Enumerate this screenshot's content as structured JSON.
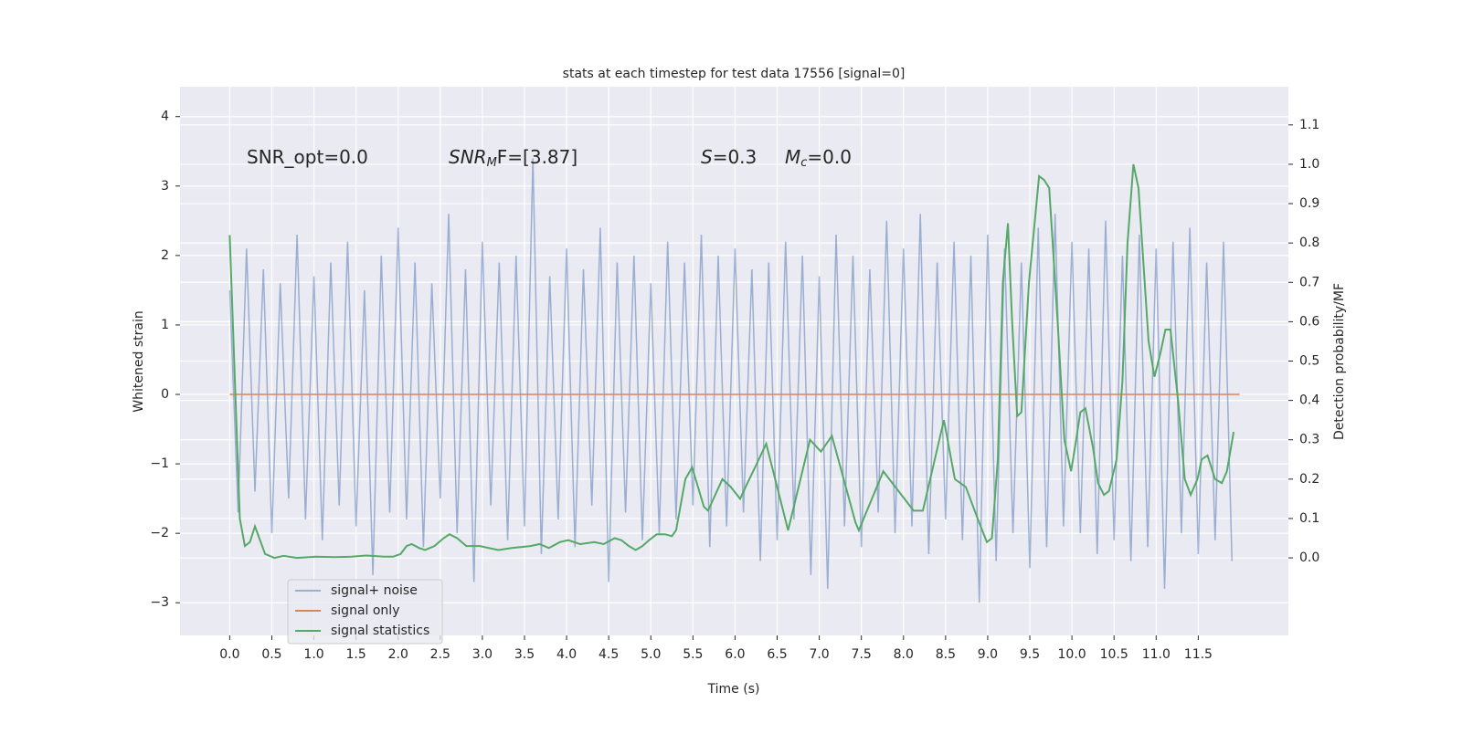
{
  "chart_data": {
    "type": "line",
    "title": "stats at each timestep for test data 17556 [signal=0]",
    "xlabel": "Time (s)",
    "ylabel": "Whitened strain",
    "y2label": "Detection probability/MF",
    "xlim": [
      -0.59,
      12.57
    ],
    "ylim": [
      -3.47,
      4.43
    ],
    "y2lim": [
      -0.197,
      1.197
    ],
    "xticks": [
      {
        "value": 0,
        "label": "0.0"
      },
      0.5,
      {
        "value": 1,
        "label": "1.0"
      },
      1.5,
      {
        "value": 2,
        "label": "2.0"
      },
      2.5,
      {
        "value": 3,
        "label": "3.0"
      },
      3.5,
      {
        "value": 4,
        "label": "4.0"
      },
      4.5,
      {
        "value": 5,
        "label": "5.0"
      },
      5.5,
      {
        "value": 6,
        "label": "6.0"
      },
      6.5,
      {
        "value": 7,
        "label": "7.0"
      },
      7.5,
      {
        "value": 8,
        "label": "8.0"
      },
      8.5,
      {
        "value": 9,
        "label": "9.0"
      },
      9.5,
      {
        "value": 10,
        "label": "10.0"
      },
      10.5,
      {
        "value": 11,
        "label": "11.0"
      },
      11.5
    ],
    "yticks": [
      {
        "value": -3,
        "label": "−3"
      },
      {
        "value": -2,
        "label": "−2"
      },
      {
        "value": -1,
        "label": "−1"
      },
      0,
      1,
      2,
      3,
      4
    ],
    "y2ticks": [
      {
        "value": 0,
        "label": "0.0"
      },
      0.1,
      0.2,
      0.3,
      0.4,
      0.5,
      0.6,
      0.7,
      0.8,
      0.9,
      {
        "value": 1,
        "label": "1.0"
      },
      1.1
    ],
    "grid": true,
    "legend": "lower left",
    "annotations": [
      [
        {
          "text": "SNR_opt=0.0"
        }
      ],
      [
        {
          "text": "SNR",
          "style": "italic"
        },
        {
          "text": "M",
          "style": "sub"
        },
        {
          "text": "F=[3.87]"
        }
      ],
      [
        {
          "text": "S",
          "style": "italic"
        },
        {
          "text": "=0.3"
        }
      ],
      [
        {
          "text": "M",
          "style": "italic"
        },
        {
          "text": "c",
          "style": "sub"
        },
        {
          "text": "=0.0"
        }
      ]
    ],
    "series": [
      {
        "name": "signal+ noise",
        "color": "#4c72b0",
        "opacity": 0.5,
        "x": [
          0,
          0.1,
          0.2,
          0.3,
          0.4,
          0.5,
          0.6,
          0.7,
          0.8,
          0.9,
          1,
          1.1,
          1.2,
          1.3,
          1.4,
          1.5,
          1.6,
          1.7,
          1.8,
          1.9,
          2,
          2.1,
          2.2,
          2.3,
          2.4,
          2.5,
          2.6,
          2.7,
          2.8,
          2.9,
          3,
          3.1,
          3.2,
          3.3,
          3.4,
          3.5,
          3.6,
          3.7,
          3.8,
          3.9,
          4,
          4.1,
          4.2,
          4.3,
          4.4,
          4.5,
          4.6,
          4.7,
          4.8,
          4.9,
          5,
          5.1,
          5.2,
          5.3,
          5.4,
          5.5,
          5.6,
          5.7,
          5.8,
          5.9,
          6,
          6.1,
          6.2,
          6.3,
          6.4,
          6.5,
          6.6,
          6.7,
          6.8,
          6.9,
          7,
          7.1,
          7.2,
          7.3,
          7.4,
          7.5,
          7.6,
          7.7,
          7.8,
          7.9,
          8,
          8.1,
          8.2,
          8.3,
          8.4,
          8.5,
          8.6,
          8.7,
          8.8,
          8.9,
          9,
          9.1,
          9.2,
          9.3,
          9.4,
          9.5,
          9.6,
          9.7,
          9.8,
          9.9,
          10,
          10.1,
          10.2,
          10.3,
          10.4,
          10.5,
          10.6,
          10.7,
          10.8,
          10.9,
          11,
          11.1,
          11.2,
          11.3,
          11.4,
          11.5,
          11.6,
          11.7,
          11.8,
          11.9
        ],
        "values": [
          1.5,
          -1.7,
          2.1,
          -1.4,
          1.8,
          -2.0,
          1.6,
          -1.5,
          2.3,
          -1.8,
          1.7,
          -2.1,
          1.9,
          -1.6,
          2.2,
          -1.9,
          1.5,
          -2.6,
          2.0,
          -1.7,
          2.4,
          -1.8,
          1.9,
          -2.2,
          1.6,
          -1.5,
          2.6,
          -2.0,
          1.8,
          -2.7,
          2.2,
          -1.6,
          1.9,
          -2.1,
          2.0,
          -1.9,
          3.4,
          -2.3,
          1.7,
          -1.8,
          2.1,
          -2.2,
          1.8,
          -1.6,
          2.4,
          -2.7,
          1.9,
          -1.7,
          2.0,
          -2.1,
          1.6,
          -2.0,
          2.2,
          -1.8,
          1.9,
          -1.6,
          2.3,
          -2.2,
          2.0,
          -1.9,
          2.1,
          -1.7,
          1.8,
          -2.4,
          1.9,
          -2.1,
          2.2,
          -1.8,
          2.0,
          -2.6,
          1.7,
          -2.8,
          2.3,
          -1.9,
          2.0,
          -2.2,
          1.8,
          -1.7,
          2.5,
          -2.0,
          2.1,
          -1.9,
          2.6,
          -2.3,
          1.9,
          -1.8,
          2.2,
          -2.1,
          2.0,
          -3.0,
          2.3,
          -2.4,
          2.1,
          -2.0,
          1.9,
          -2.5,
          2.4,
          -2.2,
          2.6,
          -1.9,
          2.2,
          -2.0,
          2.1,
          -2.3,
          2.5,
          -2.1,
          2.0,
          -2.4,
          2.3,
          -2.2,
          2.1,
          -2.8,
          2.2,
          -2.0,
          2.4,
          -2.3,
          1.9,
          -2.1,
          2.2,
          -2.4
        ]
      },
      {
        "name": "signal only",
        "color": "#dd8452",
        "x": [
          0,
          11.99
        ],
        "values": [
          0,
          0
        ]
      },
      {
        "name": "signal statistics",
        "color": "#55a868",
        "axis": "y2",
        "x": [
          0,
          0.12,
          0.18,
          0.24,
          0.3,
          0.42,
          0.53,
          0.64,
          0.8,
          1.02,
          1.24,
          1.45,
          1.62,
          1.83,
          1.94,
          2.03,
          2.1,
          2.16,
          2.25,
          2.32,
          2.43,
          2.54,
          2.61,
          2.7,
          2.81,
          2.97,
          3.19,
          3.35,
          3.57,
          3.68,
          3.79,
          3.92,
          4.02,
          4.16,
          4.33,
          4.44,
          4.57,
          4.65,
          4.74,
          4.82,
          4.9,
          4.98,
          5.07,
          5.17,
          5.25,
          5.3,
          5.41,
          5.49,
          5.63,
          5.68,
          5.85,
          5.95,
          6.06,
          6.17,
          6.26,
          6.37,
          6.63,
          6.89,
          7.02,
          7.15,
          7.43,
          7.47,
          7.76,
          8.12,
          8.23,
          8.48,
          8.61,
          8.74,
          8.88,
          8.99,
          9.05,
          9.12,
          9.18,
          9.24,
          9.29,
          9.35,
          9.4,
          9.49,
          9.61,
          9.67,
          9.73,
          9.83,
          9.91,
          9.99,
          10.05,
          10.1,
          10.16,
          10.25,
          10.31,
          10.38,
          10.44,
          10.53,
          10.6,
          10.66,
          10.73,
          10.79,
          10.91,
          10.98,
          11.05,
          11.11,
          11.17,
          11.26,
          11.34,
          11.41,
          11.49,
          11.54,
          11.61,
          11.7,
          11.78,
          11.84,
          11.92
        ],
        "values": [
          0.82,
          0.1,
          0.03,
          0.04,
          0.08,
          0.01,
          0.0,
          0.005,
          0.0,
          0.003,
          0.002,
          0.003,
          0.006,
          0.003,
          0.003,
          0.01,
          0.03,
          0.035,
          0.025,
          0.02,
          0.03,
          0.05,
          0.06,
          0.05,
          0.03,
          0.03,
          0.02,
          0.025,
          0.03,
          0.035,
          0.025,
          0.04,
          0.045,
          0.035,
          0.04,
          0.035,
          0.05,
          0.045,
          0.03,
          0.02,
          0.03,
          0.045,
          0.06,
          0.06,
          0.055,
          0.07,
          0.2,
          0.23,
          0.13,
          0.12,
          0.2,
          0.18,
          0.15,
          0.2,
          0.24,
          0.29,
          0.07,
          0.3,
          0.27,
          0.31,
          0.09,
          0.07,
          0.22,
          0.12,
          0.12,
          0.35,
          0.2,
          0.18,
          0.1,
          0.04,
          0.05,
          0.25,
          0.7,
          0.85,
          0.6,
          0.36,
          0.37,
          0.7,
          0.97,
          0.96,
          0.94,
          0.6,
          0.3,
          0.22,
          0.3,
          0.37,
          0.38,
          0.28,
          0.19,
          0.16,
          0.17,
          0.25,
          0.45,
          0.8,
          1.0,
          0.94,
          0.55,
          0.46,
          0.52,
          0.58,
          0.58,
          0.4,
          0.2,
          0.16,
          0.2,
          0.25,
          0.26,
          0.2,
          0.19,
          0.22,
          0.32
        ]
      }
    ]
  }
}
